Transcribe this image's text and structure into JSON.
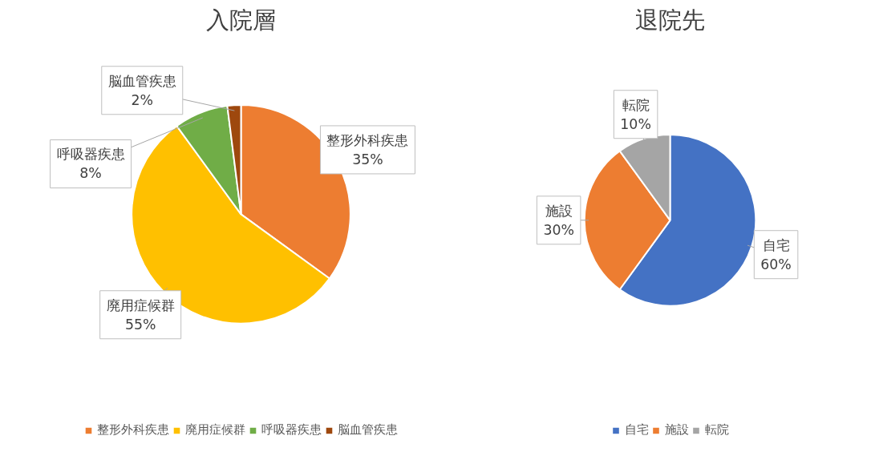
{
  "chart_data": [
    {
      "type": "pie",
      "title": "入院層",
      "categories": [
        "整形外科疾患",
        "廃用症候群",
        "呼吸器疾患",
        "脳血管疾患"
      ],
      "values": [
        35,
        55,
        8,
        2
      ],
      "colors": [
        "#ed7d31",
        "#ffc000",
        "#70ad47",
        "#9e480e"
      ],
      "value_labels": [
        "35%",
        "55%",
        "8%",
        "2%"
      ],
      "legend": "bottom"
    },
    {
      "type": "pie",
      "title": "退院先",
      "categories": [
        "自宅",
        "施設",
        "転院"
      ],
      "values": [
        60,
        30,
        10
      ],
      "colors": [
        "#4472c4",
        "#ed7d31",
        "#a5a5a5"
      ],
      "value_labels": [
        "60%",
        "30%",
        "10%"
      ],
      "legend": "bottom"
    }
  ]
}
